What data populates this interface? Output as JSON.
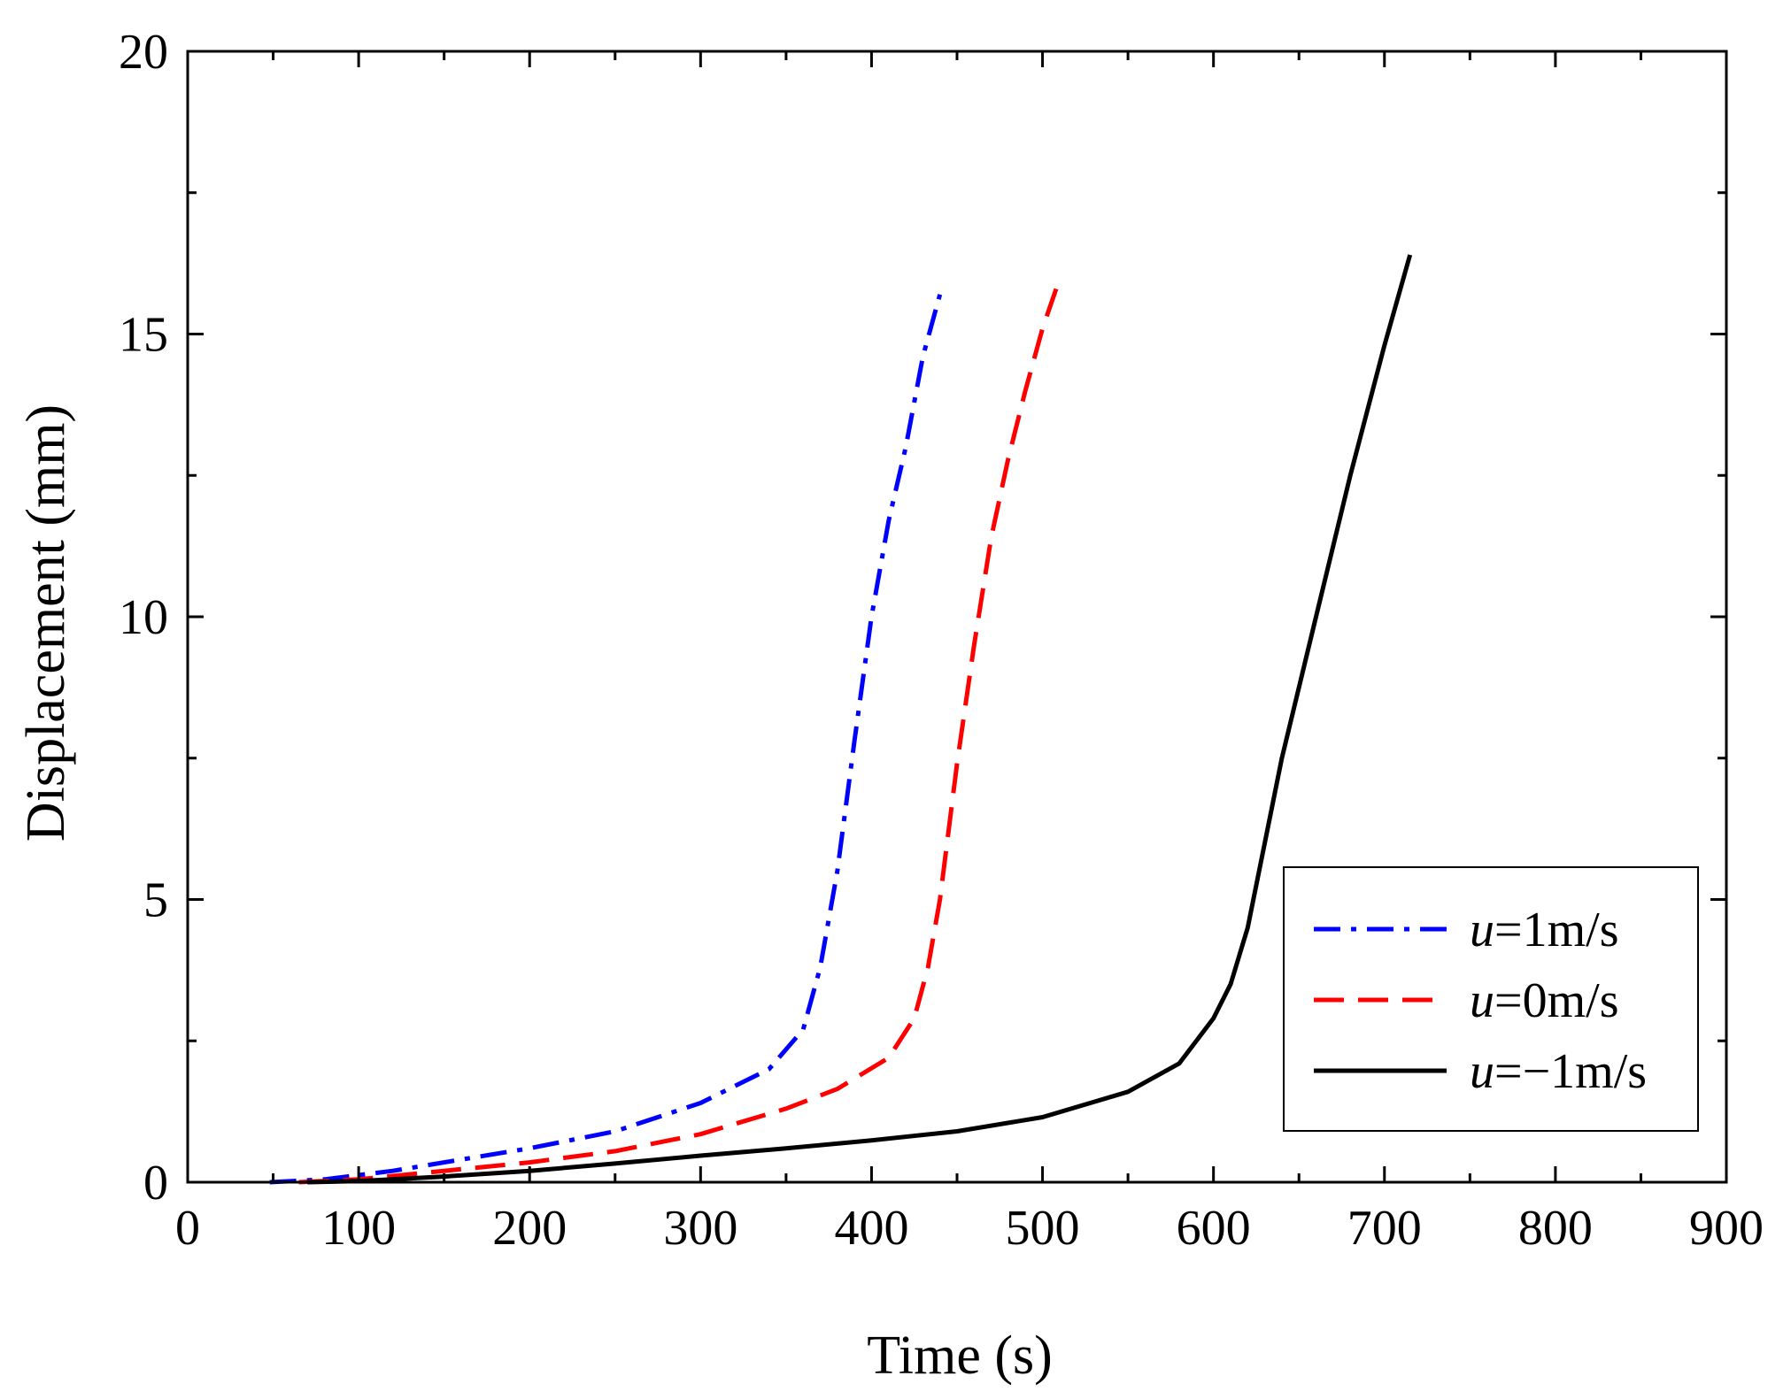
{
  "chart_data": {
    "type": "line",
    "title": "",
    "xlabel": "Time (s)",
    "ylabel": "Displacement (mm)",
    "xlim": [
      0,
      900
    ],
    "ylim": [
      0,
      20
    ],
    "xticks": [
      0,
      100,
      200,
      300,
      400,
      500,
      600,
      700,
      800,
      900
    ],
    "yticks": [
      0,
      5,
      10,
      15,
      20
    ],
    "grid": false,
    "legend_position": "bottom-right",
    "series": [
      {
        "name": "u=1m/s",
        "legend_var": "u",
        "legend_rest": "=1m/s",
        "color": "#0000ff",
        "style": "dash-dot",
        "x": [
          48,
          80,
          120,
          160,
          200,
          250,
          300,
          340,
          360,
          370,
          380,
          390,
          400,
          410,
          420,
          430,
          440
        ],
        "y": [
          0,
          0.05,
          0.2,
          0.4,
          0.6,
          0.9,
          1.4,
          2.0,
          2.7,
          3.8,
          5.5,
          7.8,
          10.0,
          11.7,
          13.0,
          14.6,
          15.7
        ]
      },
      {
        "name": "u=0m/s",
        "legend_var": "u",
        "legend_rest": "=0m/s",
        "color": "#ff0000",
        "style": "dashed",
        "x": [
          65,
          100,
          150,
          200,
          250,
          300,
          350,
          380,
          410,
          425,
          433,
          440,
          450,
          460,
          470,
          480,
          490,
          500,
          508
        ],
        "y": [
          0,
          0.05,
          0.2,
          0.35,
          0.55,
          0.85,
          1.3,
          1.65,
          2.2,
          2.9,
          3.8,
          5.0,
          7.4,
          9.5,
          11.4,
          12.8,
          14.0,
          15.1,
          15.8
        ]
      },
      {
        "name": "u=-1m/s",
        "legend_var": "u",
        "legend_rest": "=−1m/s",
        "color": "#000000",
        "style": "solid",
        "x": [
          70,
          100,
          150,
          200,
          250,
          300,
          350,
          400,
          450,
          500,
          550,
          580,
          600,
          610,
          620,
          630,
          640,
          660,
          680,
          700,
          715
        ],
        "y": [
          0,
          0.02,
          0.1,
          0.2,
          0.33,
          0.47,
          0.6,
          0.74,
          0.9,
          1.15,
          1.6,
          2.1,
          2.9,
          3.5,
          4.5,
          6.0,
          7.5,
          10.0,
          12.5,
          14.8,
          16.4
        ]
      }
    ]
  }
}
